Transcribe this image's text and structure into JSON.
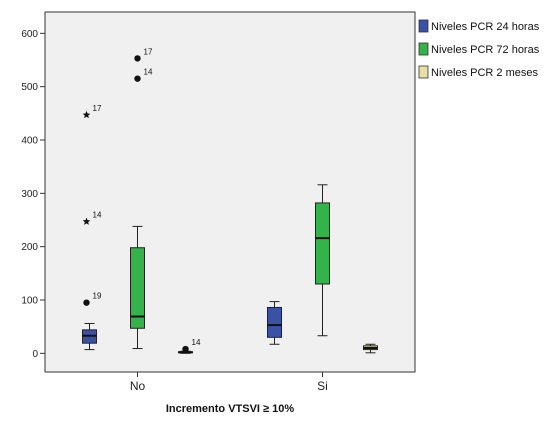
{
  "chart_data": {
    "type": "boxplot",
    "xlabel": "Incremento VTSVI ≥ 10%",
    "ylabel": "",
    "ylim": [
      -35,
      640
    ],
    "yticks": [
      0,
      100,
      200,
      300,
      400,
      500,
      600
    ],
    "ytick_labels": [
      "0",
      "100",
      "200",
      "300",
      "400",
      "500",
      "600"
    ],
    "categories": [
      "No",
      "Si"
    ],
    "grid": false,
    "legend_position": "right",
    "series": [
      {
        "name": "Niveles PCR 24 horas",
        "color": "#3a51a6",
        "boxes": [
          {
            "category": "No",
            "whisker_low": 7,
            "q1": 19,
            "median": 33,
            "q3": 44,
            "whisker_high": 56,
            "outliers": [
              {
                "value": 95,
                "marker": "circle",
                "label": "19"
              },
              {
                "value": 247,
                "marker": "star",
                "label": "14"
              },
              {
                "value": 447,
                "marker": "star",
                "label": "17"
              }
            ]
          },
          {
            "category": "Si",
            "whisker_low": 17,
            "q1": 30,
            "median": 53,
            "q3": 86,
            "whisker_high": 97,
            "outliers": []
          }
        ]
      },
      {
        "name": "Niveles PCR 72 horas",
        "color": "#33b34a",
        "boxes": [
          {
            "category": "No",
            "whisker_low": 9,
            "q1": 47,
            "median": 69,
            "q3": 198,
            "whisker_high": 238,
            "outliers": [
              {
                "value": 515,
                "marker": "circle",
                "label": "14"
              },
              {
                "value": 553,
                "marker": "circle",
                "label": "17"
              }
            ]
          },
          {
            "category": "Si",
            "whisker_low": 33,
            "q1": 130,
            "median": 216,
            "q3": 282,
            "whisker_high": 316,
            "outliers": []
          }
        ]
      },
      {
        "name": "Niveles PCR 2 meses",
        "color": "#e6dfa8",
        "boxes": [
          {
            "category": "No",
            "whisker_low": 0,
            "q1": 1,
            "median": 2,
            "q3": 3,
            "whisker_high": 4,
            "outliers": [
              {
                "value": 8,
                "marker": "circle",
                "label": "14"
              }
            ]
          },
          {
            "category": "Si",
            "whisker_low": 1,
            "q1": 7,
            "median": 10,
            "q3": 14,
            "whisker_high": 17,
            "outliers": []
          }
        ]
      }
    ]
  }
}
